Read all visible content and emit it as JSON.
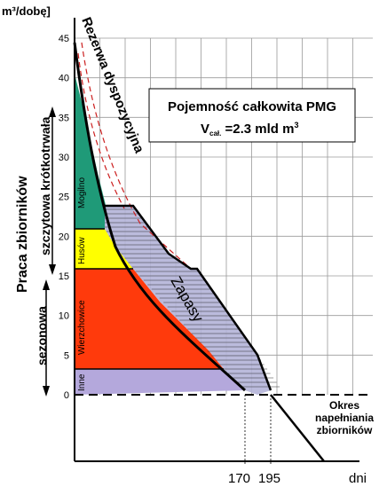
{
  "unit_label": "m³/dobę]",
  "y_axis_title": "Praca zbiorników",
  "x_axis_unit": "dni",
  "info_box": {
    "line1": "Pojemność całkowita PMG",
    "line2_prefix": "V",
    "line2_sub": "cał.",
    "line2_value": " =2.3 mld m",
    "line2_sup": "3"
  },
  "left_labels": {
    "peak": "szczytowa krótkotrwała",
    "seasonal": "sezonowa"
  },
  "curve_labels": {
    "reserve": "Rezerwa dyspozycyjna",
    "stock": "Zapasy"
  },
  "fill_label": {
    "line1": "Okres",
    "line2": "napełniania",
    "line3": "zbiorników"
  },
  "colors": {
    "mogilno": "#1f9a78",
    "husow": "#ffff00",
    "wierzchowice": "#ff3a0c",
    "inne": "#b4a8dc",
    "zapasy": "#b4b4d8",
    "grid": "#9a9a9a",
    "reserve_dash": "#cc2020"
  },
  "chart_data": {
    "type": "area",
    "y_ticks": [
      0,
      5,
      10,
      15,
      20,
      25,
      30,
      35,
      40,
      45
    ],
    "ylim": [
      -10,
      45
    ],
    "x_marks": [
      170,
      195
    ],
    "x_mark_labels": [
      "170",
      "195"
    ],
    "storage_bands": [
      {
        "name": "Inne",
        "from": 0,
        "to": 3.5
      },
      {
        "name": "Wierzchowice",
        "from": 3.5,
        "to": 16
      },
      {
        "name": "Husów",
        "from": 16,
        "to": 21
      },
      {
        "name": "Mogilno",
        "from": 21,
        "to": 42
      }
    ]
  }
}
